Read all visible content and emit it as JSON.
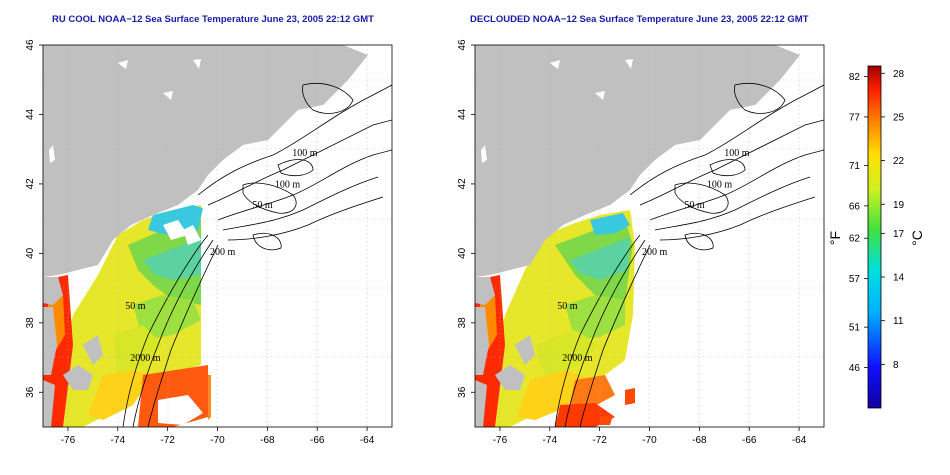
{
  "panels": [
    {
      "title": "RU COOL NOAA−12 Sea Surface Temperature June 23, 2005 22:12 GMT",
      "decloud": false,
      "contour_labels": [
        {
          "text": "100 m",
          "lon": -67.0,
          "lat": 42.8
        },
        {
          "text": "100 m",
          "lon": -67.7,
          "lat": 41.9
        },
        {
          "text": "50 m",
          "lon": -68.6,
          "lat": 41.3
        },
        {
          "text": "200 m",
          "lon": -70.3,
          "lat": 39.95
        },
        {
          "text": "50 m",
          "lon": -73.7,
          "lat": 38.4
        },
        {
          "text": "2000 m",
          "lon": -73.5,
          "lat": 36.9
        }
      ]
    },
    {
      "title": "DECLOUDED NOAA−12 Sea Surface Temperature June 23, 2005 22:12 GMT",
      "decloud": true,
      "contour_labels": [
        {
          "text": "100 m",
          "lon": -67.0,
          "lat": 42.8
        },
        {
          "text": "100 m",
          "lon": -67.7,
          "lat": 41.9
        },
        {
          "text": "50 m",
          "lon": -68.6,
          "lat": 41.3
        },
        {
          "text": "200 m",
          "lon": -70.3,
          "lat": 39.95
        },
        {
          "text": "50 m",
          "lon": -73.7,
          "lat": 38.4
        },
        {
          "text": "2000 m",
          "lon": -73.5,
          "lat": 36.9
        }
      ]
    }
  ],
  "axes": {
    "lon_range": [
      -77,
      -63
    ],
    "lat_range": [
      35,
      46
    ],
    "lon_ticks": [
      -76,
      -74,
      -72,
      -70,
      -68,
      -66,
      -64
    ],
    "lat_ticks": [
      36,
      38,
      40,
      42,
      44,
      46
    ],
    "grid": "dotted"
  },
  "colorbar": {
    "unit_f": "°F",
    "unit_c": "°C",
    "range_c": [
      5,
      28.5
    ],
    "fahrenheit_ticks": [
      "82",
      "77",
      "71",
      "66",
      "62",
      "57",
      "51",
      "46"
    ],
    "celsius_ticks": [
      "28",
      "25",
      "22",
      "19",
      "17",
      "14",
      "11",
      "8"
    ]
  },
  "colors": {
    "land": "#c0c0c0",
    "title": "#1a1aa8",
    "contour": "#000000"
  }
}
